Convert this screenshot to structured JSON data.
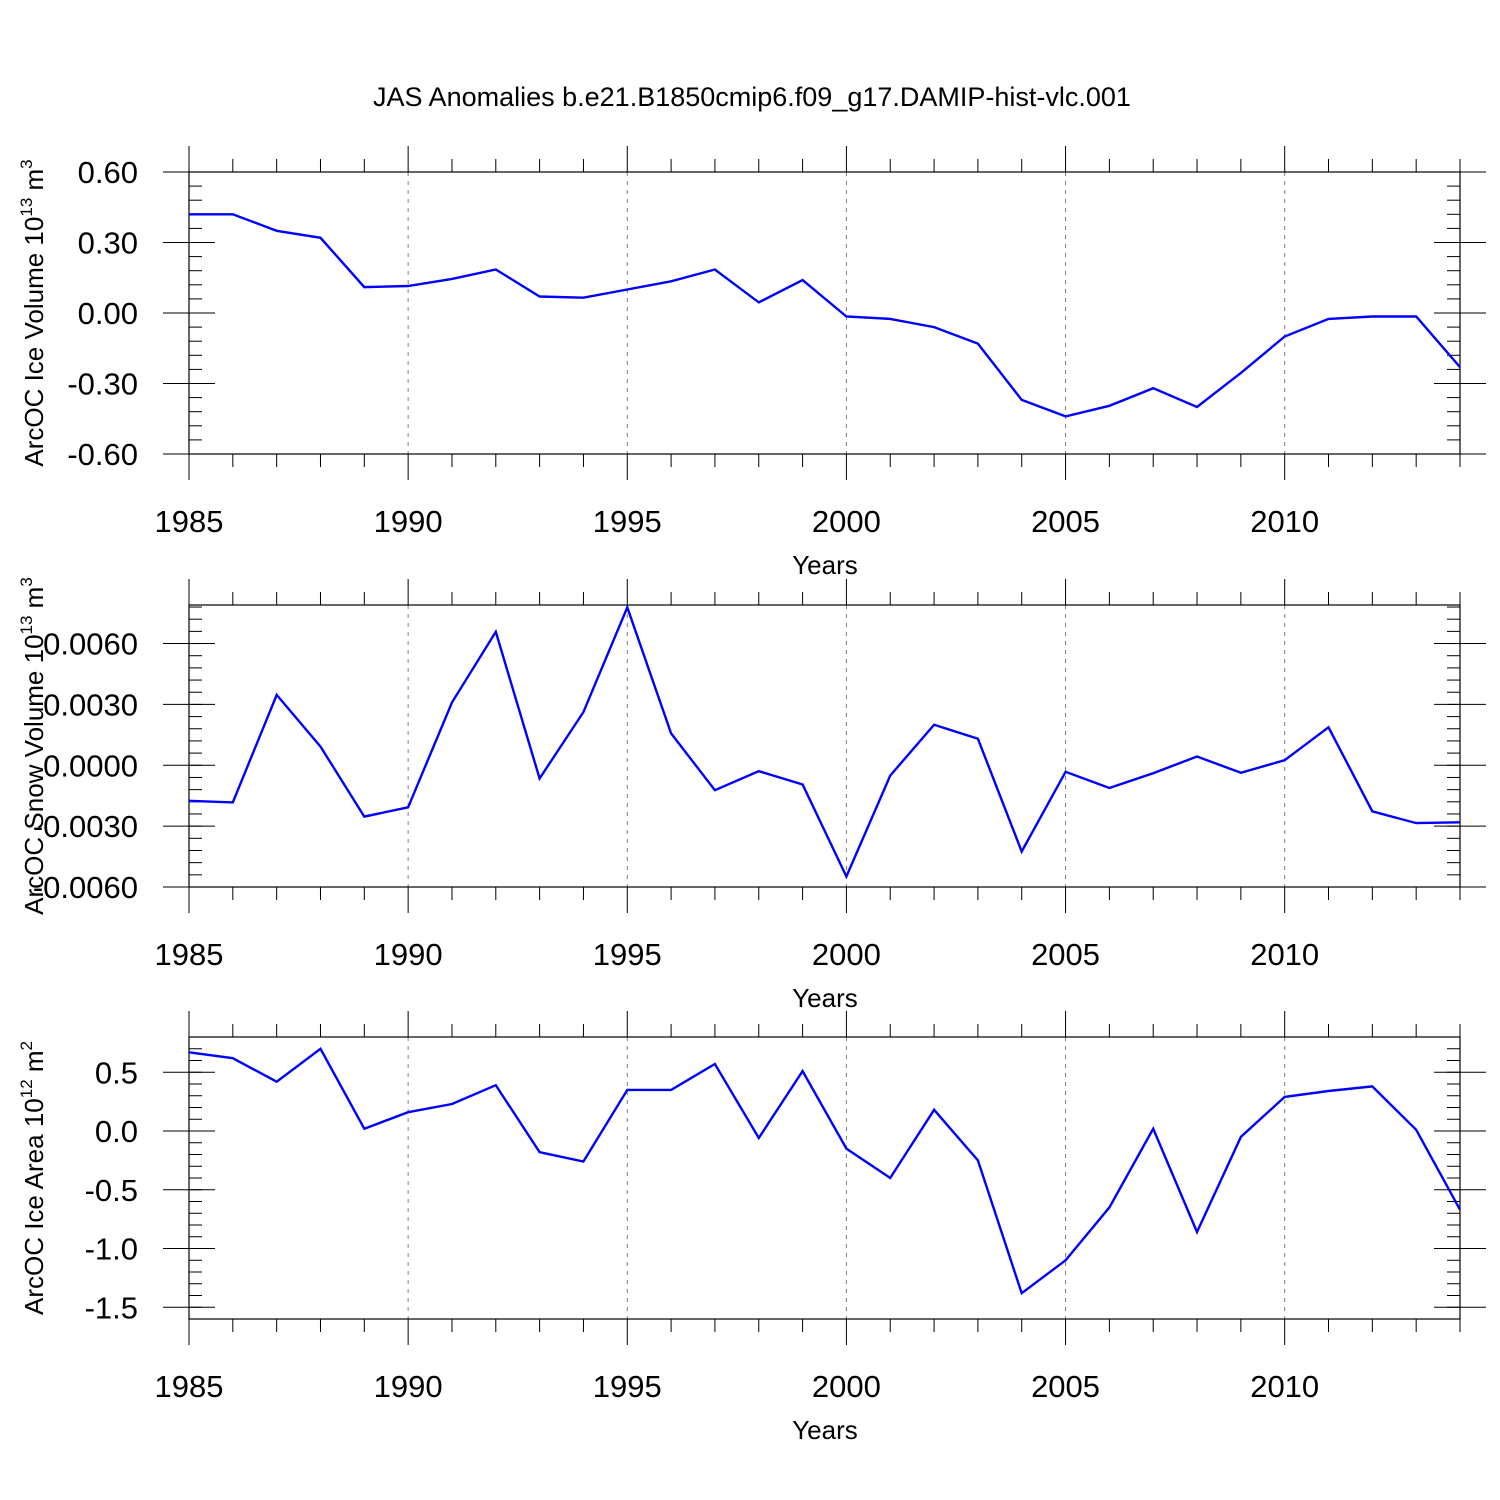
{
  "title": "JAS Anomalies b.e21.B1850cmip6.f09_g17.DAMIP-hist-vlc.001",
  "colors": {
    "line": "#0000ff",
    "axes": "#000000",
    "grid": "#808080"
  },
  "chart_data": [
    {
      "type": "line",
      "id": "ice-volume",
      "ylabel": "ArcOC Ice Volume 10",
      "ylabel_exp": "13",
      "ylabel_unit": " m",
      "ylabel_unit_exp": "3",
      "xlabel": "Years",
      "xlim": [
        1985,
        2014
      ],
      "ylim": [
        -0.6,
        0.6
      ],
      "ytick_values": [
        -0.6,
        -0.3,
        0.0,
        0.3,
        0.6
      ],
      "ytick_labels": [
        "-0.60",
        "-0.30",
        "0.00",
        "0.30",
        "0.60"
      ],
      "xtick_values": [
        1985,
        1990,
        1995,
        2000,
        2005,
        2010
      ],
      "xtick_labels": [
        "1985",
        "1990",
        "1995",
        "2000",
        "2005",
        "2010"
      ],
      "x": [
        1985,
        1986,
        1987,
        1988,
        1989,
        1990,
        1991,
        1992,
        1993,
        1994,
        1995,
        1996,
        1997,
        1998,
        1999,
        2000,
        2001,
        2002,
        2003,
        2004,
        2005,
        2006,
        2007,
        2008,
        2009,
        2010,
        2011,
        2012,
        2013,
        2014
      ],
      "series": [
        {
          "name": "Ice Volume",
          "values": [
            0.42,
            0.42,
            0.35,
            0.32,
            0.11,
            0.115,
            0.145,
            0.185,
            0.07,
            0.065,
            0.1,
            0.135,
            0.185,
            0.045,
            0.14,
            -0.015,
            -0.025,
            -0.06,
            -0.13,
            -0.37,
            -0.44,
            -0.395,
            -0.32,
            -0.4,
            -0.255,
            -0.1,
            -0.025,
            -0.015,
            -0.015,
            -0.23
          ]
        }
      ]
    },
    {
      "type": "line",
      "id": "snow-volume",
      "ylabel": "ArcOC Snow Volume 10",
      "ylabel_exp": "13",
      "ylabel_unit": " m",
      "ylabel_unit_exp": "3",
      "xlabel": "Years",
      "xlim": [
        1985,
        2014
      ],
      "ylim": [
        -0.006,
        0.0079
      ],
      "ytick_values": [
        -0.006,
        -0.003,
        0.0,
        0.003,
        0.006
      ],
      "ytick_labels": [
        "-0.0060",
        "-0.0030",
        "0.0000",
        "0.0030",
        "0.0060"
      ],
      "xtick_values": [
        1985,
        1990,
        1995,
        2000,
        2005,
        2010
      ],
      "xtick_labels": [
        "1985",
        "1990",
        "1995",
        "2000",
        "2005",
        "2010"
      ],
      "x": [
        1985,
        1986,
        1987,
        1988,
        1989,
        1990,
        1991,
        1992,
        1993,
        1994,
        1995,
        1996,
        1997,
        1998,
        1999,
        2000,
        2001,
        2002,
        2003,
        2004,
        2005,
        2006,
        2007,
        2008,
        2009,
        2010,
        2011,
        2012,
        2013,
        2014
      ],
      "series": [
        {
          "name": "Snow Volume",
          "values": [
            -0.00175,
            -0.00183,
            0.00347,
            0.00092,
            -0.00253,
            -0.00207,
            0.0031,
            0.00658,
            -0.00065,
            0.00262,
            0.00778,
            0.00157,
            -0.00123,
            -0.00029,
            -0.00095,
            -0.00548,
            -0.00051,
            0.002,
            0.00131,
            -0.00425,
            -0.00032,
            -0.00112,
            -0.00039,
            0.00043,
            -0.00037,
            0.00025,
            0.00187,
            -0.00227,
            -0.00285,
            -0.00281
          ]
        }
      ]
    },
    {
      "type": "line",
      "id": "ice-area",
      "ylabel": "ArcOC Ice Area 10",
      "ylabel_exp": "12",
      "ylabel_unit": " m",
      "ylabel_unit_exp": "2",
      "xlabel": "Years",
      "xlim": [
        1985,
        2014
      ],
      "ylim": [
        -1.6,
        0.8
      ],
      "ytick_values": [
        -1.5,
        -1.0,
        -0.5,
        0.0,
        0.5
      ],
      "ytick_labels": [
        "-1.5",
        "-1.0",
        "-0.5",
        "0.0",
        "0.5"
      ],
      "xtick_values": [
        1985,
        1990,
        1995,
        2000,
        2005,
        2010
      ],
      "xtick_labels": [
        "1985",
        "1990",
        "1995",
        "2000",
        "2005",
        "2010"
      ],
      "x": [
        1985,
        1986,
        1987,
        1988,
        1989,
        1990,
        1991,
        1992,
        1993,
        1994,
        1995,
        1996,
        1997,
        1998,
        1999,
        2000,
        2001,
        2002,
        2003,
        2004,
        2005,
        2006,
        2007,
        2008,
        2009,
        2010,
        2011,
        2012,
        2013,
        2014
      ],
      "series": [
        {
          "name": "Ice Area",
          "values": [
            0.67,
            0.62,
            0.42,
            0.7,
            0.02,
            0.16,
            0.23,
            0.39,
            -0.18,
            -0.26,
            0.35,
            0.35,
            0.57,
            -0.06,
            0.51,
            -0.15,
            -0.4,
            0.18,
            -0.25,
            -1.38,
            -1.1,
            -0.65,
            0.02,
            -0.86,
            -0.05,
            0.29,
            0.34,
            0.38,
            0.01,
            -0.67
          ]
        }
      ]
    }
  ]
}
